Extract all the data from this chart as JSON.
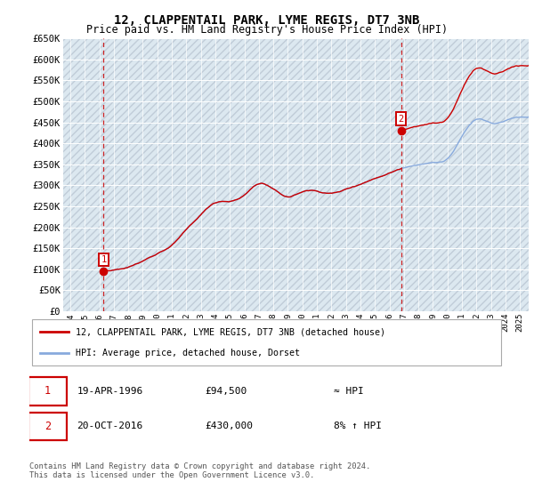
{
  "title": "12, CLAPPENTAIL PARK, LYME REGIS, DT7 3NB",
  "subtitle": "Price paid vs. HM Land Registry's House Price Index (HPI)",
  "ylim": [
    0,
    650000
  ],
  "yticks": [
    0,
    50000,
    100000,
    150000,
    200000,
    250000,
    300000,
    350000,
    400000,
    450000,
    500000,
    550000,
    600000,
    650000
  ],
  "ytick_labels": [
    "£0",
    "£50K",
    "£100K",
    "£150K",
    "£200K",
    "£250K",
    "£300K",
    "£350K",
    "£400K",
    "£450K",
    "£500K",
    "£550K",
    "£600K",
    "£650K"
  ],
  "sale1_year": 1996.3,
  "sale1_price": 94500,
  "sale2_year": 2016.8,
  "sale2_price": 430000,
  "legend_line1": "12, CLAPPENTAIL PARK, LYME REGIS, DT7 3NB (detached house)",
  "legend_line2": "HPI: Average price, detached house, Dorset",
  "note1_date": "19-APR-1996",
  "note1_price": "£94,500",
  "note1_hpi": "≈ HPI",
  "note2_date": "20-OCT-2016",
  "note2_price": "£430,000",
  "note2_hpi": "8% ↑ HPI",
  "footer": "Contains HM Land Registry data © Crown copyright and database right 2024.\nThis data is licensed under the Open Government Licence v3.0.",
  "red_color": "#cc0000",
  "blue_color": "#88aadd",
  "bg_color": "#ffffff",
  "plot_bg_color": "#dce8f0",
  "hatch_color": "#c0ccd8",
  "grid_color": "#ffffff",
  "xlim_min": 1993.5,
  "xlim_max": 2025.6
}
